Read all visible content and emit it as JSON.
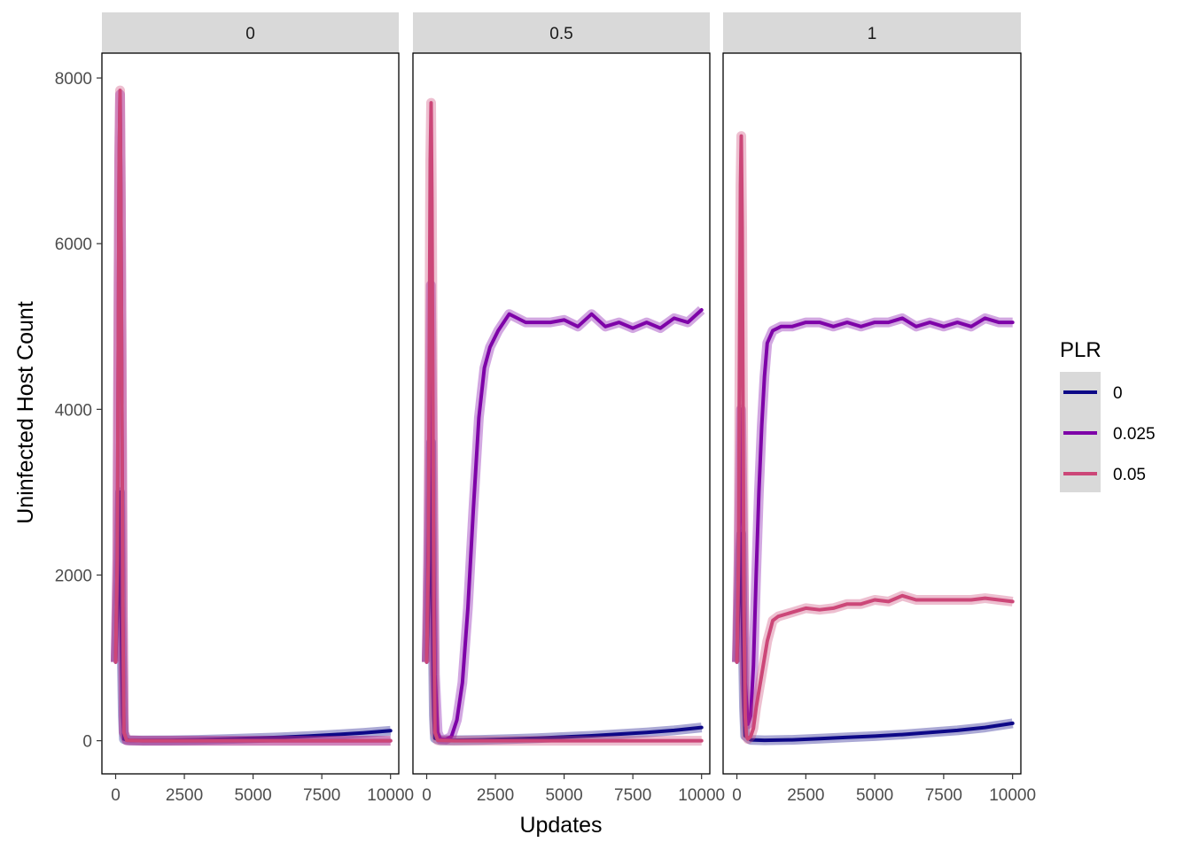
{
  "chart_data": {
    "type": "line",
    "xlabel": "Updates",
    "ylabel": "Uninfected Host Count",
    "xlim": [
      -500,
      10300
    ],
    "ylim": [
      -400,
      8300
    ],
    "x_ticks": [
      0,
      2500,
      5000,
      7500,
      10000
    ],
    "y_ticks": [
      0,
      2000,
      4000,
      6000,
      8000
    ],
    "grid": false,
    "legend": {
      "title": "PLR",
      "position": "right",
      "entries": [
        {
          "label": "0",
          "color": "#0d0887"
        },
        {
          "label": "0.025",
          "color": "#7e03a8"
        },
        {
          "label": "0.05",
          "color": "#cc4778"
        }
      ]
    },
    "facets": [
      {
        "label": "0",
        "series": [
          {
            "name": "0",
            "color": "#0d0887",
            "points": [
              [
                0,
                950
              ],
              [
                60,
                1600
              ],
              [
                120,
                2300
              ],
              [
                160,
                3000
              ],
              [
                200,
                1500
              ],
              [
                260,
                300
              ],
              [
                300,
                20
              ],
              [
                500,
                5
              ],
              [
                1000,
                3
              ],
              [
                2000,
                5
              ],
              [
                3000,
                10
              ],
              [
                4000,
                20
              ],
              [
                5000,
                30
              ],
              [
                6000,
                40
              ],
              [
                7000,
                55
              ],
              [
                8000,
                75
              ],
              [
                9000,
                95
              ],
              [
                10000,
                120
              ]
            ]
          },
          {
            "name": "0.025",
            "color": "#7e03a8",
            "points": [
              [
                0,
                950
              ],
              [
                60,
                2200
              ],
              [
                100,
                5000
              ],
              [
                130,
                7000
              ],
              [
                160,
                7800
              ],
              [
                190,
                6500
              ],
              [
                220,
                4500
              ],
              [
                260,
                1500
              ],
              [
                300,
                100
              ],
              [
                400,
                5
              ],
              [
                1000,
                0
              ],
              [
                5000,
                0
              ],
              [
                10000,
                0
              ]
            ]
          },
          {
            "name": "0.05",
            "color": "#cc4778",
            "points": [
              [
                0,
                950
              ],
              [
                60,
                2200
              ],
              [
                100,
                5000
              ],
              [
                130,
                7000
              ],
              [
                160,
                7850
              ],
              [
                190,
                6500
              ],
              [
                220,
                4500
              ],
              [
                260,
                1500
              ],
              [
                300,
                100
              ],
              [
                400,
                5
              ],
              [
                1000,
                0
              ],
              [
                5000,
                0
              ],
              [
                10000,
                0
              ]
            ]
          }
        ]
      },
      {
        "label": "0.5",
        "series": [
          {
            "name": "0",
            "color": "#0d0887",
            "points": [
              [
                0,
                950
              ],
              [
                60,
                1600
              ],
              [
                120,
                2600
              ],
              [
                160,
                3600
              ],
              [
                200,
                1800
              ],
              [
                260,
                300
              ],
              [
                300,
                30
              ],
              [
                500,
                5
              ],
              [
                1000,
                5
              ],
              [
                2000,
                10
              ],
              [
                3000,
                20
              ],
              [
                4000,
                30
              ],
              [
                5000,
                45
              ],
              [
                6000,
                60
              ],
              [
                7000,
                80
              ],
              [
                8000,
                100
              ],
              [
                9000,
                125
              ],
              [
                10000,
                160
              ]
            ]
          },
          {
            "name": "0.025",
            "color": "#7e03a8",
            "points": [
              [
                0,
                950
              ],
              [
                100,
                3500
              ],
              [
                150,
                5500
              ],
              [
                200,
                4000
              ],
              [
                300,
                800
              ],
              [
                400,
                100
              ],
              [
                500,
                20
              ],
              [
                700,
                15
              ],
              [
                900,
                50
              ],
              [
                1100,
                250
              ],
              [
                1300,
                700
              ],
              [
                1500,
                1600
              ],
              [
                1700,
                2800
              ],
              [
                1900,
                3900
              ],
              [
                2100,
                4500
              ],
              [
                2300,
                4750
              ],
              [
                2600,
                4950
              ],
              [
                3000,
                5150
              ],
              [
                3300,
                5100
              ],
              [
                3600,
                5050
              ],
              [
                4000,
                5050
              ],
              [
                4500,
                5050
              ],
              [
                5000,
                5080
              ],
              [
                5500,
                5000
              ],
              [
                6000,
                5150
              ],
              [
                6500,
                5000
              ],
              [
                7000,
                5050
              ],
              [
                7500,
                4980
              ],
              [
                8000,
                5050
              ],
              [
                8500,
                4980
              ],
              [
                9000,
                5100
              ],
              [
                9500,
                5050
              ],
              [
                10000,
                5200
              ]
            ]
          },
          {
            "name": "0.05",
            "color": "#cc4778",
            "points": [
              [
                0,
                950
              ],
              [
                60,
                2200
              ],
              [
                100,
                5000
              ],
              [
                130,
                7000
              ],
              [
                160,
                7700
              ],
              [
                190,
                6500
              ],
              [
                220,
                4500
              ],
              [
                260,
                1500
              ],
              [
                300,
                100
              ],
              [
                400,
                5
              ],
              [
                1000,
                0
              ],
              [
                5000,
                0
              ],
              [
                10000,
                0
              ]
            ]
          }
        ]
      },
      {
        "label": "1",
        "series": [
          {
            "name": "0",
            "color": "#0d0887",
            "points": [
              [
                0,
                950
              ],
              [
                60,
                1600
              ],
              [
                120,
                2300
              ],
              [
                160,
                2500
              ],
              [
                200,
                1500
              ],
              [
                260,
                400
              ],
              [
                300,
                60
              ],
              [
                500,
                10
              ],
              [
                1000,
                5
              ],
              [
                2000,
                10
              ],
              [
                3000,
                25
              ],
              [
                4000,
                40
              ],
              [
                5000,
                55
              ],
              [
                6000,
                75
              ],
              [
                7000,
                100
              ],
              [
                8000,
                125
              ],
              [
                9000,
                160
              ],
              [
                10000,
                210
              ]
            ]
          },
          {
            "name": "0.025",
            "color": "#7e03a8",
            "points": [
              [
                0,
                950
              ],
              [
                80,
                2500
              ],
              [
                150,
                4000
              ],
              [
                220,
                2500
              ],
              [
                300,
                700
              ],
              [
                400,
                200
              ],
              [
                500,
                300
              ],
              [
                600,
                900
              ],
              [
                700,
                2000
              ],
              [
                800,
                3000
              ],
              [
                900,
                3800
              ],
              [
                1000,
                4400
              ],
              [
                1100,
                4800
              ],
              [
                1300,
                4950
              ],
              [
                1600,
                5000
              ],
              [
                2000,
                5000
              ],
              [
                2500,
                5050
              ],
              [
                3000,
                5050
              ],
              [
                3500,
                5000
              ],
              [
                4000,
                5050
              ],
              [
                4500,
                5000
              ],
              [
                5000,
                5050
              ],
              [
                5500,
                5050
              ],
              [
                6000,
                5100
              ],
              [
                6500,
                5000
              ],
              [
                7000,
                5050
              ],
              [
                7500,
                5000
              ],
              [
                8000,
                5050
              ],
              [
                8500,
                5000
              ],
              [
                9000,
                5100
              ],
              [
                9500,
                5050
              ],
              [
                10000,
                5050
              ]
            ]
          },
          {
            "name": "0.05",
            "color": "#cc4778",
            "points": [
              [
                0,
                950
              ],
              [
                60,
                2200
              ],
              [
                100,
                5000
              ],
              [
                130,
                6700
              ],
              [
                160,
                7300
              ],
              [
                190,
                6200
              ],
              [
                220,
                4200
              ],
              [
                260,
                1500
              ],
              [
                300,
                300
              ],
              [
                350,
                50
              ],
              [
                400,
                20
              ],
              [
                500,
                50
              ],
              [
                600,
                150
              ],
              [
                700,
                400
              ],
              [
                900,
                800
              ],
              [
                1100,
                1200
              ],
              [
                1300,
                1450
              ],
              [
                1500,
                1500
              ],
              [
                2000,
                1550
              ],
              [
                2500,
                1600
              ],
              [
                3000,
                1580
              ],
              [
                3500,
                1600
              ],
              [
                4000,
                1650
              ],
              [
                4500,
                1650
              ],
              [
                5000,
                1700
              ],
              [
                5500,
                1680
              ],
              [
                6000,
                1750
              ],
              [
                6500,
                1700
              ],
              [
                7000,
                1700
              ],
              [
                7500,
                1700
              ],
              [
                8000,
                1700
              ],
              [
                8500,
                1700
              ],
              [
                9000,
                1720
              ],
              [
                9500,
                1700
              ],
              [
                10000,
                1680
              ]
            ]
          }
        ]
      }
    ]
  }
}
